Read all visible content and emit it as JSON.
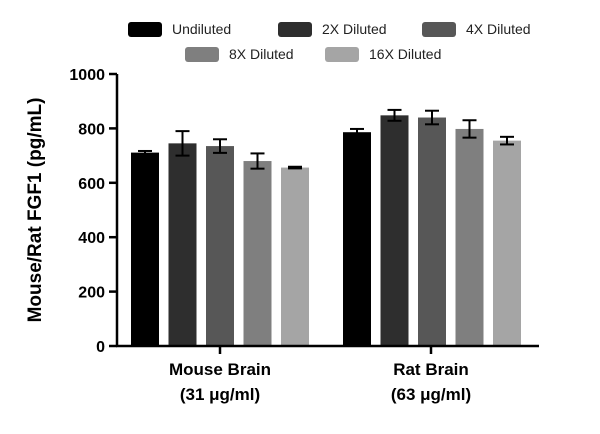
{
  "chart_data": {
    "type": "bar",
    "title": "",
    "ylabel": "Mouse/Rat FGF1 (pg/mL)",
    "xlabel": "",
    "ylim": [
      0,
      1000
    ],
    "yticks": [
      0,
      200,
      400,
      600,
      800,
      1000
    ],
    "yticks_text": [
      "0",
      "200",
      "400",
      "600",
      "800",
      "1000"
    ],
    "grid": false,
    "legend_position": "top",
    "categories": [
      {
        "line1": "Mouse Brain",
        "line2": "(31 μg/ml)"
      },
      {
        "line1": "Rat Brain",
        "line2": "(63 μg/ml)"
      }
    ],
    "series": [
      {
        "name": "Undiluted",
        "color": "#000000",
        "values": [
          711,
          786
        ],
        "errors": [
          6,
          12
        ]
      },
      {
        "name": "2X Diluted",
        "color": "#2e2e2e",
        "values": [
          745,
          848
        ],
        "errors": [
          45,
          20
        ]
      },
      {
        "name": "4X Diluted",
        "color": "#575757",
        "values": [
          735,
          840
        ],
        "errors": [
          25,
          25
        ]
      },
      {
        "name": "8X Diluted",
        "color": "#7f7f7f",
        "values": [
          680,
          798
        ],
        "errors": [
          28,
          32
        ]
      },
      {
        "name": "16X Diluted",
        "color": "#a5a5a5",
        "values": [
          656,
          755
        ],
        "errors": [
          3,
          14
        ]
      }
    ]
  }
}
